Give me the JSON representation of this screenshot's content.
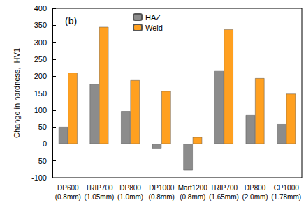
{
  "chart_data": {
    "type": "bar",
    "annotation": "(b)",
    "y_label": "Change in hardness,  HV1",
    "categories": [
      "DP600\n(0.8mm)",
      "TRIP700\n(1.05mm)",
      "DP800\n(1.0mm)",
      "DP1000\n(0.8mm)",
      "Mart1200\n(0.8mm)",
      "TRIP700\n(1.65mm)",
      "DP800\n(2.0mm)",
      "CP1000\n(1.78mm)"
    ],
    "series": [
      {
        "name": "HAZ",
        "color": "#8c8c8c",
        "values": [
          50,
          177,
          97,
          -15,
          -78,
          215,
          85,
          58
        ]
      },
      {
        "name": "Weld",
        "color": "#ffa020",
        "values": [
          210,
          345,
          188,
          156,
          20,
          338,
          194,
          148
        ]
      }
    ],
    "ylim": [
      -100,
      400
    ],
    "yticks": [
      -100,
      -50,
      0,
      50,
      100,
      150,
      200,
      250,
      300,
      350,
      400
    ],
    "grid": false,
    "legend": "upper center"
  }
}
